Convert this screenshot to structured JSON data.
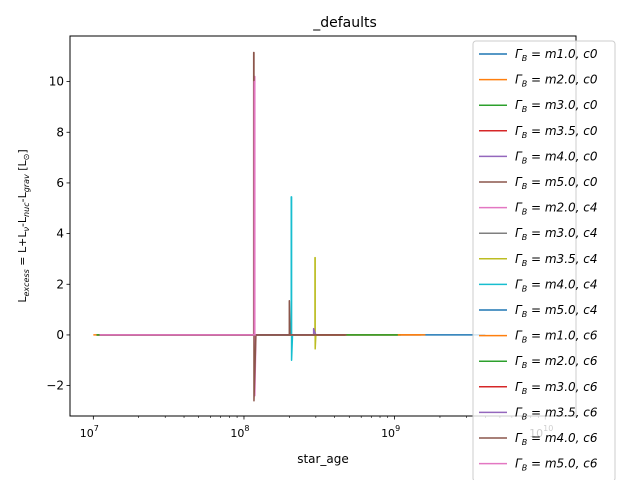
{
  "chart_data": {
    "type": "line",
    "title": "_defaults",
    "xlabel": "star_age",
    "ylabel": "L$_{excess}$ = L+L$_{\\nu}$-L$_{nuc}$-L$_{grav}$ [L$_\\odot$]",
    "xscale": "log",
    "xlim": [
      7000000.0,
      16000000000.0
    ],
    "ylim": [
      -3.2,
      11.8
    ],
    "x_ticks": [
      {
        "value": 10000000.0,
        "label": "10^7"
      },
      {
        "value": 100000000.0,
        "label": "10^8"
      },
      {
        "value": 1000000000.0,
        "label": "10^9"
      },
      {
        "value": 10000000000.0,
        "label": "10^10"
      }
    ],
    "y_ticks": [
      -2,
      0,
      2,
      4,
      6,
      8,
      10
    ],
    "grid": false,
    "legend_position": "upper right",
    "series": [
      {
        "name": "Γ_B = m1.0, c0",
        "legend_label": "Γ",
        "legend_sub": "B",
        "legend_eq": " = m1.0, c0",
        "color": "#1f77b4",
        "x": [
          10500000.0,
          30000000.0,
          100000000.0,
          120000000.0,
          450000000.0,
          1000000000.0,
          4000000000.0
        ],
        "y": [
          0,
          0,
          0,
          0,
          0,
          0,
          0
        ]
      },
      {
        "name": "Γ_B = m2.0, c0",
        "legend_label": "Γ",
        "legend_sub": "B",
        "legend_eq": " = m2.0, c0",
        "color": "#ff7f0e",
        "x": [
          10000000.0,
          30000000.0,
          100000000.0,
          120000000.0,
          450000000.0,
          1000000000.0,
          1500000000.0
        ],
        "y": [
          0,
          0,
          0,
          0,
          0,
          0,
          0
        ]
      },
      {
        "name": "Γ_B = m3.0, c0",
        "legend_label": "Γ",
        "legend_sub": "B",
        "legend_eq": " = m3.0, c0",
        "color": "#2ca02c",
        "x": [
          10500000.0,
          120000000.0,
          450000000.0,
          1000000000.0,
          1100000000.0
        ],
        "y": [
          0,
          0,
          0,
          0,
          0
        ]
      },
      {
        "name": "Γ_B = m3.5, c0",
        "legend_label": "Γ",
        "legend_sub": "B",
        "legend_eq": " = m3.5, c0",
        "color": "#d62728",
        "x": [
          10500000.0,
          120000000.0,
          200000000.0,
          300000000.0,
          470000000.0
        ],
        "y": [
          0,
          0,
          0,
          0,
          0
        ]
      },
      {
        "name": "Γ_B = m4.0, c0",
        "legend_label": "Γ",
        "legend_sub": "B",
        "legend_eq": " = m4.0, c0",
        "color": "#9467bd",
        "x": [
          11000000.0,
          120000000.0,
          300000000.0,
          460000000.0
        ],
        "y": [
          0,
          0,
          0,
          0
        ]
      },
      {
        "name": "Γ_B = m5.0, c0",
        "legend_label": "Γ",
        "legend_sub": "B",
        "legend_eq": " = m5.0, c0",
        "color": "#8c564b",
        "x": [
          11000000.0,
          118000000.0,
          300000000.0,
          470000000.0
        ],
        "y": [
          0,
          0,
          0,
          0
        ]
      },
      {
        "name": "Γ_B = m2.0, c4",
        "legend_label": "Γ",
        "legend_sub": "B",
        "legend_eq": " = m2.0, c4",
        "color": "#e377c2",
        "x": [
          11000000.0,
          117000000.0,
          117000000.0,
          118000000.0,
          118000000.0,
          120000000.0
        ],
        "y": [
          0,
          0,
          10.2,
          10.2,
          -2.4,
          0
        ]
      },
      {
        "name": "Γ_B = m3.0, c4",
        "legend_label": "Γ",
        "legend_sub": "B",
        "legend_eq": " = m3.0, c4",
        "color": "#7f7f7f",
        "x": [
          11000000.0,
          118000000.0,
          200000000.0,
          290000000.0
        ],
        "y": [
          0,
          0,
          0,
          0
        ]
      },
      {
        "name": "Γ_B = m3.5, c4",
        "legend_label": "Γ",
        "legend_sub": "B",
        "legend_eq": " = m3.5, c4",
        "color": "#bcbd22",
        "x": [
          11000000.0,
          120000000.0,
          296000000.0,
          296000000.0,
          297000000.0,
          297000000.0,
          300000000.0
        ],
        "y": [
          0,
          0,
          0,
          3.05,
          3.05,
          -0.55,
          0
        ]
      },
      {
        "name": "Γ_B = m4.0, c4",
        "legend_label": "Γ",
        "legend_sub": "B",
        "legend_eq": " = m4.0, c4",
        "color": "#17becf",
        "x": [
          11000000.0,
          120000000.0,
          206000000.0,
          206000000.0,
          207000000.0,
          207000000.0,
          210000000.0
        ],
        "y": [
          0,
          0,
          0,
          5.45,
          5.45,
          -1.0,
          0
        ]
      },
      {
        "name": "Γ_B = m5.0, c4",
        "legend_label": "Γ",
        "legend_sub": "B",
        "legend_eq": " = m5.0, c4",
        "color": "#1f77b4",
        "x": [
          11000000.0,
          118000000.0,
          200000000.0
        ],
        "y": [
          0,
          0,
          0
        ]
      },
      {
        "name": "Γ_B = m1.0, c6",
        "legend_label": "Γ",
        "legend_sub": "B",
        "legend_eq": " = m1.0, c6",
        "color": "#ff7f0e",
        "x": [
          10500000.0,
          120000000.0,
          1000000000.0,
          1600000000.0
        ],
        "y": [
          0,
          0,
          0,
          0
        ]
      },
      {
        "name": "Γ_B = m2.0, c6",
        "legend_label": "Γ",
        "legend_sub": "B",
        "legend_eq": " = m2.0, c6",
        "color": "#2ca02c",
        "x": [
          10500000.0,
          120000000.0,
          450000000.0,
          1050000000.0
        ],
        "y": [
          0,
          0,
          0,
          0
        ]
      },
      {
        "name": "Γ_B = m3.0, c6",
        "legend_label": "Γ",
        "legend_sub": "B",
        "legend_eq": " = m3.0, c6",
        "color": "#d62728",
        "x": [
          11000000.0,
          120000000.0,
          300000000.0,
          470000000.0
        ],
        "y": [
          0,
          0,
          0,
          0
        ]
      },
      {
        "name": "Γ_B = m3.5, c6",
        "legend_label": "Γ",
        "legend_sub": "B",
        "legend_eq": " = m3.5, c6",
        "color": "#9467bd",
        "x": [
          11000000.0,
          120000000.0,
          290000000.0,
          290000000.0,
          300000000.0
        ],
        "y": [
          0,
          0,
          0,
          0.25,
          0
        ]
      },
      {
        "name": "Γ_B = m4.0, c6",
        "legend_label": "Γ",
        "legend_sub": "B",
        "legend_eq": " = m4.0, c6",
        "color": "#8c564b",
        "x": [
          11000000.0,
          116000000.0,
          116000000.0,
          116500000.0,
          116500000.0,
          120000000.0,
          200000000.0,
          200000000.0,
          202000000.0,
          480000000.0
        ],
        "y": [
          0,
          0,
          11.15,
          11.15,
          -2.6,
          0,
          0,
          1.35,
          0,
          0
        ]
      },
      {
        "name": "Γ_B = m5.0, c6",
        "legend_label": "Γ",
        "legend_sub": "B",
        "legend_eq": " = m5.0, c6",
        "color": "#e377c2",
        "x": [
          11000000.0,
          117000000.0,
          117000000.0,
          117500000.0,
          120000000.0
        ],
        "y": [
          0,
          0,
          10.0,
          0,
          0
        ]
      }
    ]
  }
}
